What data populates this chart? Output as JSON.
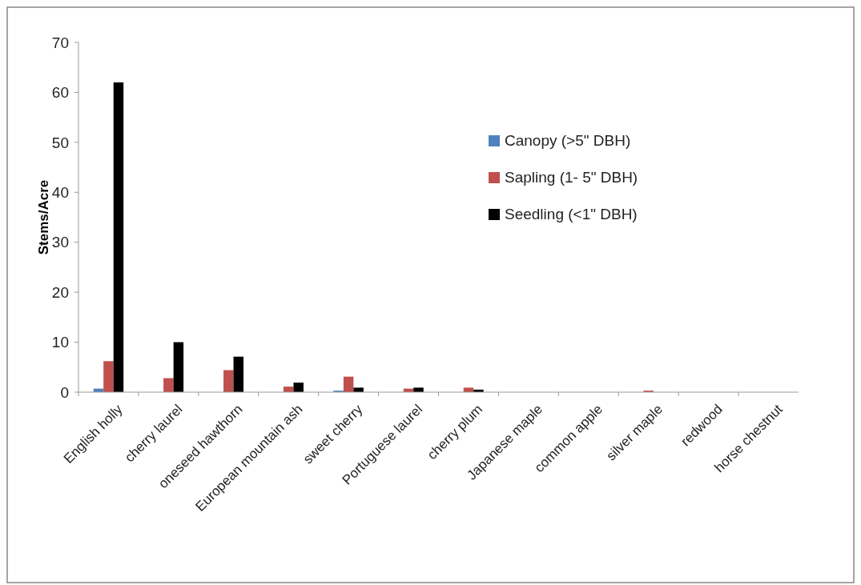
{
  "chart_data": {
    "type": "bar",
    "ylabel": "Stems/Acre",
    "categories": [
      "English holly",
      "cherry laurel",
      "oneseed hawthorn",
      "European mountain ash",
      "sweet cherry",
      "Portuguese laurel",
      "cherry plum",
      "Japanese maple",
      "common apple",
      "silver maple",
      "redwood",
      "horse chestnut"
    ],
    "series": [
      {
        "name": "Canopy (>5\" DBH)",
        "color": "#4f81bd",
        "values": [
          0.7,
          0,
          0,
          0,
          0.3,
          0,
          0,
          0,
          0,
          0,
          0,
          0
        ]
      },
      {
        "name": "Sapling (1- 5\" DBH)",
        "color": "#c0504d",
        "values": [
          6.2,
          2.8,
          4.4,
          1.1,
          3.1,
          0.7,
          0.9,
          0,
          0,
          0.3,
          0,
          0
        ]
      },
      {
        "name": "Seedling (<1\" DBH)",
        "color": "#000000",
        "values": [
          62,
          10,
          7.1,
          1.9,
          0.9,
          0.9,
          0.5,
          0,
          0,
          0,
          0,
          0
        ]
      }
    ],
    "ylim": [
      0,
      70
    ],
    "yticks": [
      0,
      10,
      20,
      30,
      40,
      50,
      60,
      70
    ],
    "grid": false,
    "legend": "right"
  }
}
